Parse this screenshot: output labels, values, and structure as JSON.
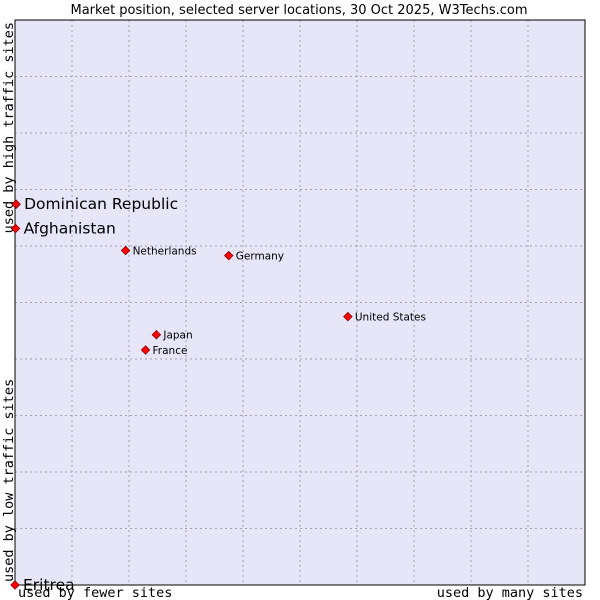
{
  "chart_data": {
    "type": "scatter",
    "title": "Market position, selected server locations, 30 Oct 2025, W3Techs.com",
    "xlabel_left": "used by fewer sites",
    "xlabel_right": "used by many sites",
    "ylabel_bottom": "used by low traffic sites",
    "ylabel_top": "used by high traffic sites",
    "xlim": [
      0,
      100
    ],
    "ylim": [
      0,
      100
    ],
    "grid": true,
    "colors": {
      "plot_bg": "#e6e6f8",
      "border": "#000000",
      "marker": "#ff0000",
      "marker_edge": "#8b0000"
    },
    "points": [
      {
        "label": "Dominican Republic",
        "x": 0.2,
        "y": 67.4,
        "emphasis": true
      },
      {
        "label": "Afghanistan",
        "x": 0.1,
        "y": 63.1,
        "emphasis": true
      },
      {
        "label": "Netherlands",
        "x": 19.4,
        "y": 59.2,
        "emphasis": false
      },
      {
        "label": "Germany",
        "x": 37.5,
        "y": 58.3,
        "emphasis": false
      },
      {
        "label": "United States",
        "x": 58.4,
        "y": 47.5,
        "emphasis": false
      },
      {
        "label": "Japan",
        "x": 24.8,
        "y": 44.3,
        "emphasis": false
      },
      {
        "label": "France",
        "x": 22.9,
        "y": 41.6,
        "emphasis": false
      },
      {
        "label": "Eritrea",
        "x": 0.0,
        "y": 0.0,
        "emphasis": true
      }
    ]
  }
}
